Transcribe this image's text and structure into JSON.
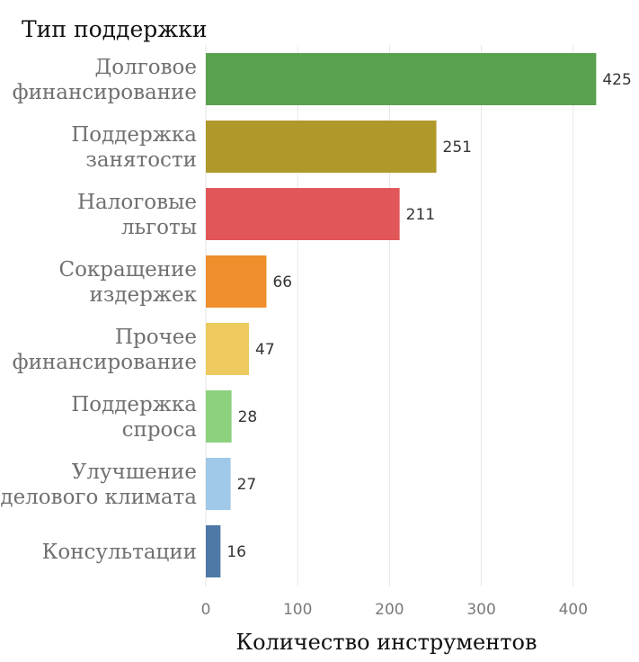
{
  "chart_data": {
    "type": "bar",
    "orientation": "horizontal",
    "title": "Тип поддержки",
    "xlabel": "Количество инструментов",
    "ylabel": "",
    "xlim": [
      0,
      450
    ],
    "xticks": [
      0,
      100,
      200,
      300,
      400
    ],
    "grid": true,
    "legend": "none",
    "categories": [
      [
        "Долговое",
        "финансирование"
      ],
      [
        "Поддержка",
        "занятости"
      ],
      [
        "Налоговые",
        "льготы"
      ],
      [
        "Сокращение",
        "издержек"
      ],
      [
        "Прочее",
        "финансирование"
      ],
      [
        "Поддержка",
        "спроса"
      ],
      [
        "Улучшение",
        "делового климата"
      ],
      [
        "Консультации"
      ]
    ],
    "values": [
      425,
      251,
      211,
      66,
      47,
      28,
      27,
      16
    ],
    "colors": [
      "#59a14f",
      "#b0992b",
      "#e15759",
      "#ef8e2c",
      "#edc95e",
      "#8cd17d",
      "#a0c8e8",
      "#4e79a7"
    ]
  }
}
